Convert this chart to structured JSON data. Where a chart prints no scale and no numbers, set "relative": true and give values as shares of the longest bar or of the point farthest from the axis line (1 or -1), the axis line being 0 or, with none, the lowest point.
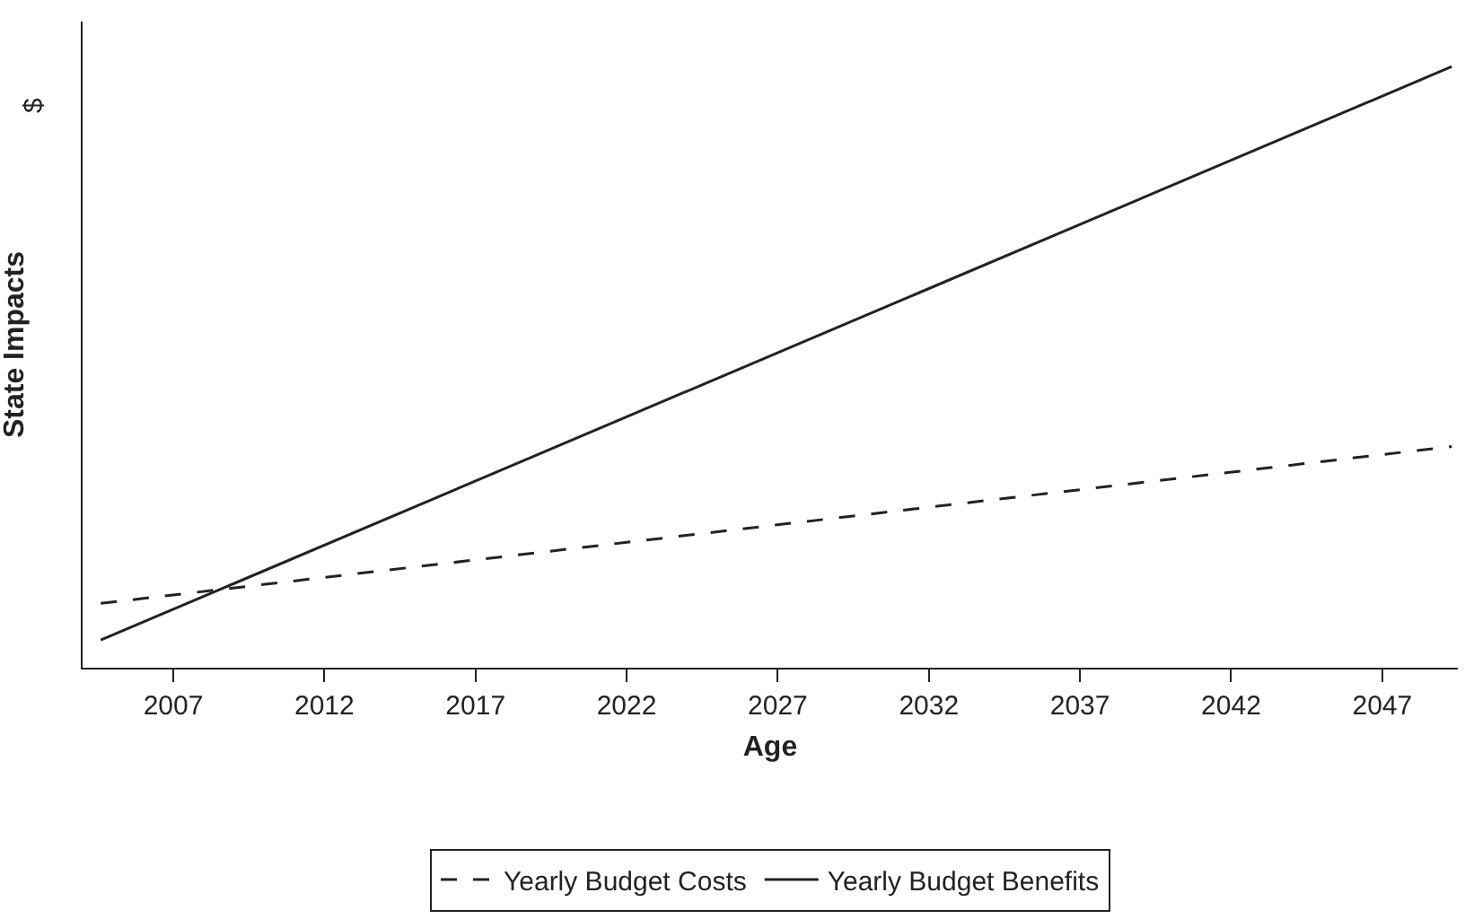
{
  "chart_data": {
    "type": "line",
    "relative": true,
    "xlabel": "Age",
    "ylabel": "State Impacts",
    "annotations": [
      "$"
    ],
    "xlim": [
      2004,
      2049.5
    ],
    "xticks": [
      2007,
      2012,
      2017,
      2022,
      2027,
      2032,
      2037,
      2042,
      2047
    ],
    "legend": "bottom",
    "marker": "none",
    "x": [
      2004.6,
      2049.3
    ],
    "series": [
      {
        "name": "Yearly Budget Costs",
        "color": "#222222",
        "line_style": "dashed",
        "values": [
          0.107,
          0.368
        ]
      },
      {
        "name": "Yearly Budget Benefits",
        "color": "#222222",
        "line_style": "solid",
        "values": [
          0.046,
          1
        ]
      }
    ]
  }
}
